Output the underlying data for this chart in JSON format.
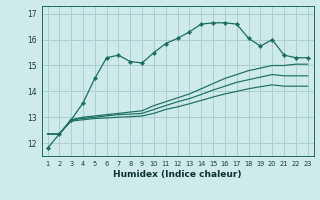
{
  "xlabel": "Humidex (Indice chaleur)",
  "bg_color": "#ceeaea",
  "line_color": "#1a6e5e",
  "grid_color": "#aacfcf",
  "x_values": [
    1,
    2,
    3,
    4,
    5,
    6,
    7,
    8,
    9,
    10,
    11,
    12,
    13,
    14,
    15,
    16,
    17,
    18,
    19,
    20,
    21,
    22,
    23
  ],
  "series1": [
    11.8,
    12.35,
    12.9,
    13.55,
    14.5,
    15.3,
    15.4,
    15.15,
    15.1,
    15.5,
    15.85,
    16.05,
    16.3,
    16.6,
    16.65,
    16.65,
    16.6,
    16.05,
    15.75,
    16.0,
    15.4,
    15.3,
    15.3
  ],
  "series2": [
    12.35,
    12.35,
    12.9,
    13.0,
    13.05,
    13.1,
    13.15,
    13.2,
    13.25,
    13.45,
    13.6,
    13.75,
    13.9,
    14.1,
    14.3,
    14.5,
    14.65,
    14.8,
    14.9,
    15.0,
    15.0,
    15.05,
    15.05
  ],
  "series3": [
    12.35,
    12.35,
    12.9,
    12.95,
    13.0,
    13.05,
    13.1,
    13.12,
    13.15,
    13.3,
    13.45,
    13.6,
    13.72,
    13.88,
    14.05,
    14.2,
    14.35,
    14.45,
    14.55,
    14.65,
    14.6,
    14.6,
    14.6
  ],
  "series4": [
    12.35,
    12.35,
    12.85,
    12.9,
    12.95,
    12.97,
    13.0,
    13.02,
    13.05,
    13.15,
    13.3,
    13.4,
    13.52,
    13.65,
    13.78,
    13.9,
    14.0,
    14.1,
    14.18,
    14.25,
    14.2,
    14.2,
    14.2
  ],
  "ylim": [
    11.5,
    17.3
  ],
  "yticks": [
    12,
    13,
    14,
    15,
    16,
    17
  ],
  "xticks": [
    1,
    2,
    3,
    4,
    5,
    6,
    7,
    8,
    9,
    10,
    11,
    12,
    13,
    14,
    15,
    16,
    17,
    18,
    19,
    20,
    21,
    22,
    23
  ]
}
